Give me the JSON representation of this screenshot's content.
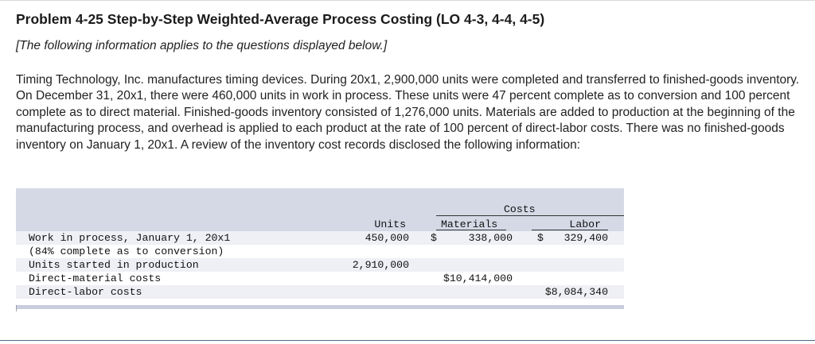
{
  "problem": {
    "title": "Problem 4-25 Step-by-Step Weighted-Average Process Costing (LO 4-3, 4-4, 4-5)",
    "subtitle": "[The following information applies to the questions displayed below.]",
    "paragraph": "Timing Technology, Inc. manufactures timing devices. During 20x1, 2,900,000 units were completed and transferred to finished-goods inventory. On December 31, 20x1, there were 460,000 units in work in process. These units were 47 percent complete as to conversion and 100 percent complete as to direct material. Finished-goods inventory consisted of 1,276,000 units. Materials are added to production at the beginning of the manufacturing process, and overhead is applied to each product at the rate of 100 percent of direct-labor costs. There was no finished-goods inventory on January 1, 20x1. A review of the inventory cost records disclosed the following information:"
  },
  "table": {
    "group_header": "Costs",
    "col_units": "Units",
    "col_materials": "Materials",
    "col_labor": "Labor",
    "rows": [
      {
        "label": "Work in process, January 1, 20x1",
        "units": "450,000",
        "materials_sign": "$",
        "materials": "338,000",
        "labor_sign": "$",
        "labor": "329,400"
      },
      {
        "label": "(84% complete as to conversion)"
      },
      {
        "label": "Units started in production",
        "units": "2,910,000"
      },
      {
        "label": "Direct-material costs",
        "materials": "$10,414,000"
      },
      {
        "label": "Direct-labor costs",
        "labor": "$8,084,340"
      }
    ]
  }
}
